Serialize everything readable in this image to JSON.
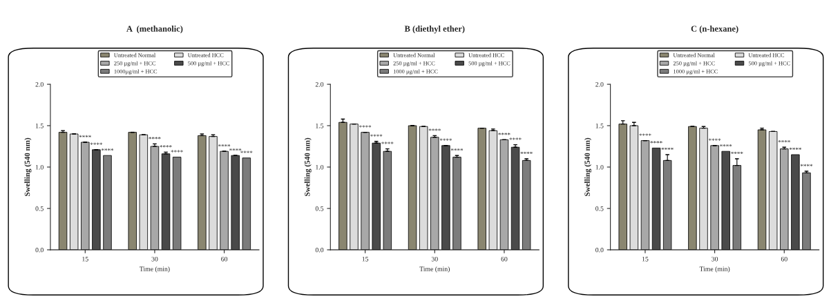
{
  "chart_data": [
    {
      "type": "bar",
      "title": "A  (methanolic)",
      "xlabel": "Time (min)",
      "ylabel": "Swelling (540 nm)",
      "categories": [
        "15",
        "30",
        "60"
      ],
      "ylim": [
        0,
        2
      ],
      "yticks": [
        {
          "value": 0,
          "label": "0.0"
        },
        {
          "value": 0.5,
          "label": "0.5"
        },
        {
          "value": 1,
          "label": "1.0"
        },
        {
          "value": 1.5,
          "label": "1.5"
        },
        {
          "value": 2,
          "label": "2.0"
        }
      ],
      "legend": "top",
      "grid": false,
      "series": [
        {
          "name": "Untreated Normal",
          "color": "#8a8670",
          "values": [
            1.42,
            1.42,
            1.38
          ],
          "errors": [
            0.02,
            null,
            0.02
          ]
        },
        {
          "name": "Untreated HCC",
          "color": "#dcdcdc",
          "values": [
            1.4,
            1.39,
            1.37
          ],
          "errors": [
            null,
            null,
            0.02
          ]
        },
        {
          "name": "250 µg/ml + HCC",
          "color": "#a8a8a8",
          "values": [
            1.3,
            1.25,
            1.19
          ],
          "errors": [
            null,
            0.03,
            null
          ],
          "value_labels": [
            "****",
            "****",
            "****"
          ]
        },
        {
          "name": "500 µg/ml + HCC",
          "color": "#4a4a4a",
          "values": [
            1.21,
            1.16,
            1.14
          ],
          "errors": [
            null,
            0.02,
            null
          ],
          "value_labels": [
            "****",
            "****",
            "****"
          ]
        },
        {
          "name": "1000µg/ml + HCC",
          "color": "#7c7c7c",
          "values": [
            1.14,
            1.12,
            1.11
          ],
          "errors": [
            null,
            null,
            null
          ],
          "value_labels": [
            "****",
            "****",
            "****"
          ]
        }
      ]
    },
    {
      "type": "bar",
      "title": "B (diethyl ether)",
      "xlabel": "Time (min)",
      "ylabel": "Swelling (540 nm)",
      "categories": [
        "15",
        "30",
        "60"
      ],
      "ylim": [
        0,
        2
      ],
      "yticks": [
        {
          "value": 0,
          "label": "0.0"
        },
        {
          "value": 0.5,
          "label": "0.5"
        },
        {
          "value": 1,
          "label": "1.0"
        },
        {
          "value": 1.5,
          "label": "1.5"
        },
        {
          "value": 2,
          "label": "2.0"
        }
      ],
      "legend": "top",
      "grid": false,
      "series": [
        {
          "name": "Untreated Normal",
          "color": "#8a8670",
          "values": [
            1.54,
            1.5,
            1.47
          ],
          "errors": [
            0.04,
            null,
            null
          ]
        },
        {
          "name": "Untreated HCC",
          "color": "#dcdcdc",
          "values": [
            1.52,
            1.49,
            1.44
          ],
          "errors": [
            null,
            null,
            0.02
          ]
        },
        {
          "name": "250 µg/ml + HCC",
          "color": "#a8a8a8",
          "values": [
            1.42,
            1.36,
            1.33
          ],
          "errors": [
            null,
            0.02,
            null
          ],
          "value_labels": [
            "****",
            "****",
            "****"
          ]
        },
        {
          "name": "500 µg/ml + HCC",
          "color": "#4a4a4a",
          "values": [
            1.29,
            1.26,
            1.24
          ],
          "errors": [
            0.02,
            null,
            0.03
          ],
          "value_labels": [
            "****",
            "****",
            "****"
          ]
        },
        {
          "name": "1000 µg/ml + HCC",
          "color": "#7c7c7c",
          "values": [
            1.19,
            1.12,
            1.08
          ],
          "errors": [
            0.03,
            0.02,
            0.02
          ],
          "value_labels": [
            "****",
            "****",
            "****"
          ]
        }
      ]
    },
    {
      "type": "bar",
      "title": "C (n-hexane)",
      "xlabel": "Time (min)",
      "ylabel": "Swelling (540 nm)",
      "categories": [
        "15",
        "30",
        "60"
      ],
      "ylim": [
        0,
        2
      ],
      "yticks": [
        {
          "value": 0,
          "label": "0.0"
        },
        {
          "value": 0.5,
          "label": "0.5"
        },
        {
          "value": 1,
          "label": "1.0"
        },
        {
          "value": 1.5,
          "label": "1.5"
        },
        {
          "value": 2,
          "label": "2.0"
        }
      ],
      "legend": "top",
      "grid": false,
      "series": [
        {
          "name": "Untreated Normal",
          "color": "#8a8670",
          "values": [
            1.52,
            1.49,
            1.45
          ],
          "errors": [
            0.04,
            null,
            0.02
          ]
        },
        {
          "name": "Untreated HCC",
          "color": "#dcdcdc",
          "values": [
            1.5,
            1.47,
            1.43
          ],
          "errors": [
            0.04,
            0.02,
            null
          ]
        },
        {
          "name": "250 µg/ml + HCC",
          "color": "#a8a8a8",
          "values": [
            1.32,
            1.26,
            1.22
          ],
          "errors": [
            null,
            null,
            0.02
          ],
          "value_labels": [
            "****",
            "****",
            "****"
          ]
        },
        {
          "name": "500 µg/ml + HCC",
          "color": "#4a4a4a",
          "values": [
            1.23,
            1.19,
            1.15
          ],
          "errors": [
            null,
            null,
            null
          ],
          "value_labels": [
            "****",
            "****",
            "****"
          ]
        },
        {
          "name": "1000 µg/ml + HCC",
          "color": "#7c7c7c",
          "values": [
            1.08,
            1.02,
            0.93
          ],
          "errors": [
            0.07,
            0.08,
            0.02
          ],
          "value_labels": [
            "****",
            "****",
            "****"
          ]
        }
      ]
    }
  ]
}
